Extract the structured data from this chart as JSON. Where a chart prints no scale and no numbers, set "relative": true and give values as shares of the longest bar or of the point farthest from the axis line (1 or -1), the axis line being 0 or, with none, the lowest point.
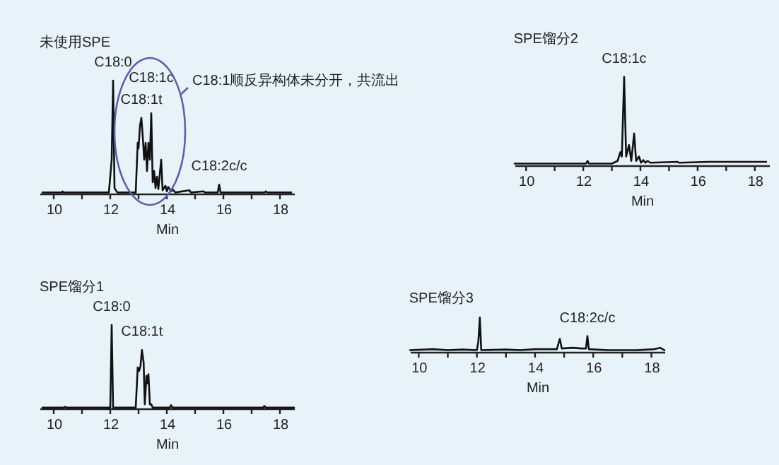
{
  "chart_data": [
    {
      "type": "line",
      "title": "未使用SPE",
      "xlabel": "Min",
      "relative": true,
      "xlim": [
        9.5,
        18.5
      ],
      "xticks": [
        10,
        {
          "value": 11,
          "label": null
        },
        12,
        {
          "value": 13,
          "label": null
        },
        14,
        {
          "value": 15,
          "label": null
        },
        16,
        {
          "value": 17,
          "label": null
        },
        18
      ],
      "x": [
        9.6,
        10.3,
        10.31,
        10.35,
        11.2,
        11.95,
        12.05,
        12.1,
        12.15,
        12.25,
        12.9,
        12.97,
        13.0,
        13.05,
        13.1,
        13.15,
        13.2,
        13.25,
        13.3,
        13.35,
        13.4,
        13.45,
        13.5,
        13.55,
        13.6,
        13.65,
        13.7,
        13.8,
        13.85,
        13.95,
        14.0,
        14.05,
        14.15,
        14.2,
        14.3,
        14.8,
        14.85,
        15.3,
        15.35,
        15.8,
        15.85,
        15.9,
        17.45,
        17.5,
        17.55,
        18.4
      ],
      "series": [
        {
          "color": "#111111",
          "values": [
            0.01,
            0.01,
            0.02,
            0.01,
            0.01,
            0.01,
            0.3,
            1.0,
            0.05,
            0.01,
            0.01,
            0.45,
            0.4,
            0.6,
            0.67,
            0.5,
            0.3,
            0.45,
            0.2,
            0.45,
            0.3,
            0.71,
            0.1,
            0.2,
            0.05,
            0.15,
            0.04,
            0.3,
            0.03,
            0.07,
            0.02,
            0.06,
            0.02,
            0.04,
            0.01,
            0.03,
            0.01,
            0.02,
            0.01,
            0.01,
            0.08,
            0.01,
            0.01,
            0.02,
            0.01,
            0.01
          ]
        }
      ],
      "annotations": [
        {
          "text": "C18:0",
          "x": 12.1,
          "y": 1.0
        },
        {
          "text": "C18:1t",
          "x": 13.1,
          "y": 0.67
        },
        {
          "text": "C18:1c",
          "x": 13.45,
          "y": 0.71
        },
        {
          "text": "C18:2c/c",
          "x": 15.85,
          "y": 0.08
        },
        "C18:1顺反异构体未分开，共流出"
      ]
    },
    {
      "type": "line",
      "title": "SPE馏分2",
      "xlabel": "Min",
      "relative": true,
      "xlim": [
        9.6,
        18.5
      ],
      "xticks": [
        10,
        {
          "value": 11,
          "label": null
        },
        12,
        {
          "value": 13,
          "label": null
        },
        14,
        {
          "value": 15,
          "label": null
        },
        16,
        {
          "value": 17,
          "label": null
        },
        18
      ],
      "x": [
        9.6,
        11.5,
        12.1,
        12.15,
        12.2,
        13.0,
        13.2,
        13.3,
        13.35,
        13.43,
        13.5,
        13.6,
        13.68,
        13.78,
        13.85,
        13.95,
        14.02,
        14.1,
        14.17,
        14.25,
        14.35,
        15.3,
        15.35,
        16.4,
        17.0,
        18.4
      ],
      "series": [
        {
          "color": "#111111",
          "values": [
            0.02,
            0.02,
            0.02,
            0.05,
            0.02,
            0.02,
            0.05,
            0.15,
            0.1,
            1.0,
            0.1,
            0.23,
            0.05,
            0.36,
            0.05,
            0.1,
            0.03,
            0.06,
            0.03,
            0.05,
            0.03,
            0.04,
            0.03,
            0.04,
            0.04,
            0.04
          ]
        }
      ],
      "annotations": [
        {
          "text": "C18:1c",
          "x": 13.43,
          "y": 1.0
        }
      ]
    },
    {
      "type": "line",
      "title": "SPE馏分1",
      "xlabel": "Min",
      "relative": true,
      "xlim": [
        9.5,
        18.5
      ],
      "xticks": [
        10,
        {
          "value": 11,
          "label": null
        },
        12,
        {
          "value": 13,
          "label": null
        },
        14,
        {
          "value": 15,
          "label": null
        },
        16,
        {
          "value": 17,
          "label": null
        },
        18
      ],
      "x": [
        9.6,
        10.35,
        10.4,
        10.45,
        12.0,
        12.05,
        12.1,
        12.9,
        12.97,
        13.02,
        13.07,
        13.12,
        13.18,
        13.22,
        13.28,
        13.31,
        13.35,
        13.4,
        13.45,
        13.5,
        14.1,
        14.15,
        14.2,
        17.4,
        17.45,
        17.5,
        18.5
      ],
      "series": [
        {
          "color": "#111111",
          "values": [
            0.01,
            0.01,
            0.02,
            0.01,
            0.01,
            1.0,
            0.01,
            0.01,
            0.49,
            0.45,
            0.51,
            0.7,
            0.55,
            0.05,
            0.39,
            0.3,
            0.41,
            0.05,
            0.05,
            0.01,
            0.01,
            0.04,
            0.01,
            0.01,
            0.03,
            0.01,
            0.01
          ]
        }
      ],
      "annotations": [
        {
          "text": "C18:0",
          "x": 12.05,
          "y": 1.0
        },
        {
          "text": "C18:1t",
          "x": 13.12,
          "y": 0.7
        }
      ]
    },
    {
      "type": "line",
      "title": "SPE馏分3",
      "xlabel": "Min",
      "relative": true,
      "xlim": [
        9.7,
        18.45
      ],
      "xticks": [
        10,
        {
          "value": 11,
          "label": null
        },
        12,
        {
          "value": 13,
          "label": null
        },
        14,
        {
          "value": 15,
          "label": null
        },
        16,
        {
          "value": 17,
          "label": null
        },
        18
      ],
      "x": [
        9.7,
        10.5,
        11.0,
        11.5,
        12.0,
        12.05,
        12.1,
        12.15,
        13.0,
        13.5,
        14.0,
        14.75,
        14.85,
        14.92,
        15.3,
        15.6,
        15.75,
        15.8,
        15.85,
        16.5,
        17.5,
        18.1,
        18.3,
        18.45
      ],
      "series": [
        {
          "color": "#111111",
          "values": [
            0.05,
            0.08,
            0.05,
            0.07,
            0.05,
            0.3,
            1.0,
            0.05,
            0.07,
            0.05,
            0.08,
            0.08,
            0.38,
            0.1,
            0.12,
            0.1,
            0.1,
            0.46,
            0.08,
            0.05,
            0.05,
            0.08,
            0.12,
            0.05
          ]
        }
      ],
      "annotations": [
        {
          "text": "C18:2c/c",
          "x": 15.8,
          "y": 0.46
        }
      ]
    }
  ]
}
